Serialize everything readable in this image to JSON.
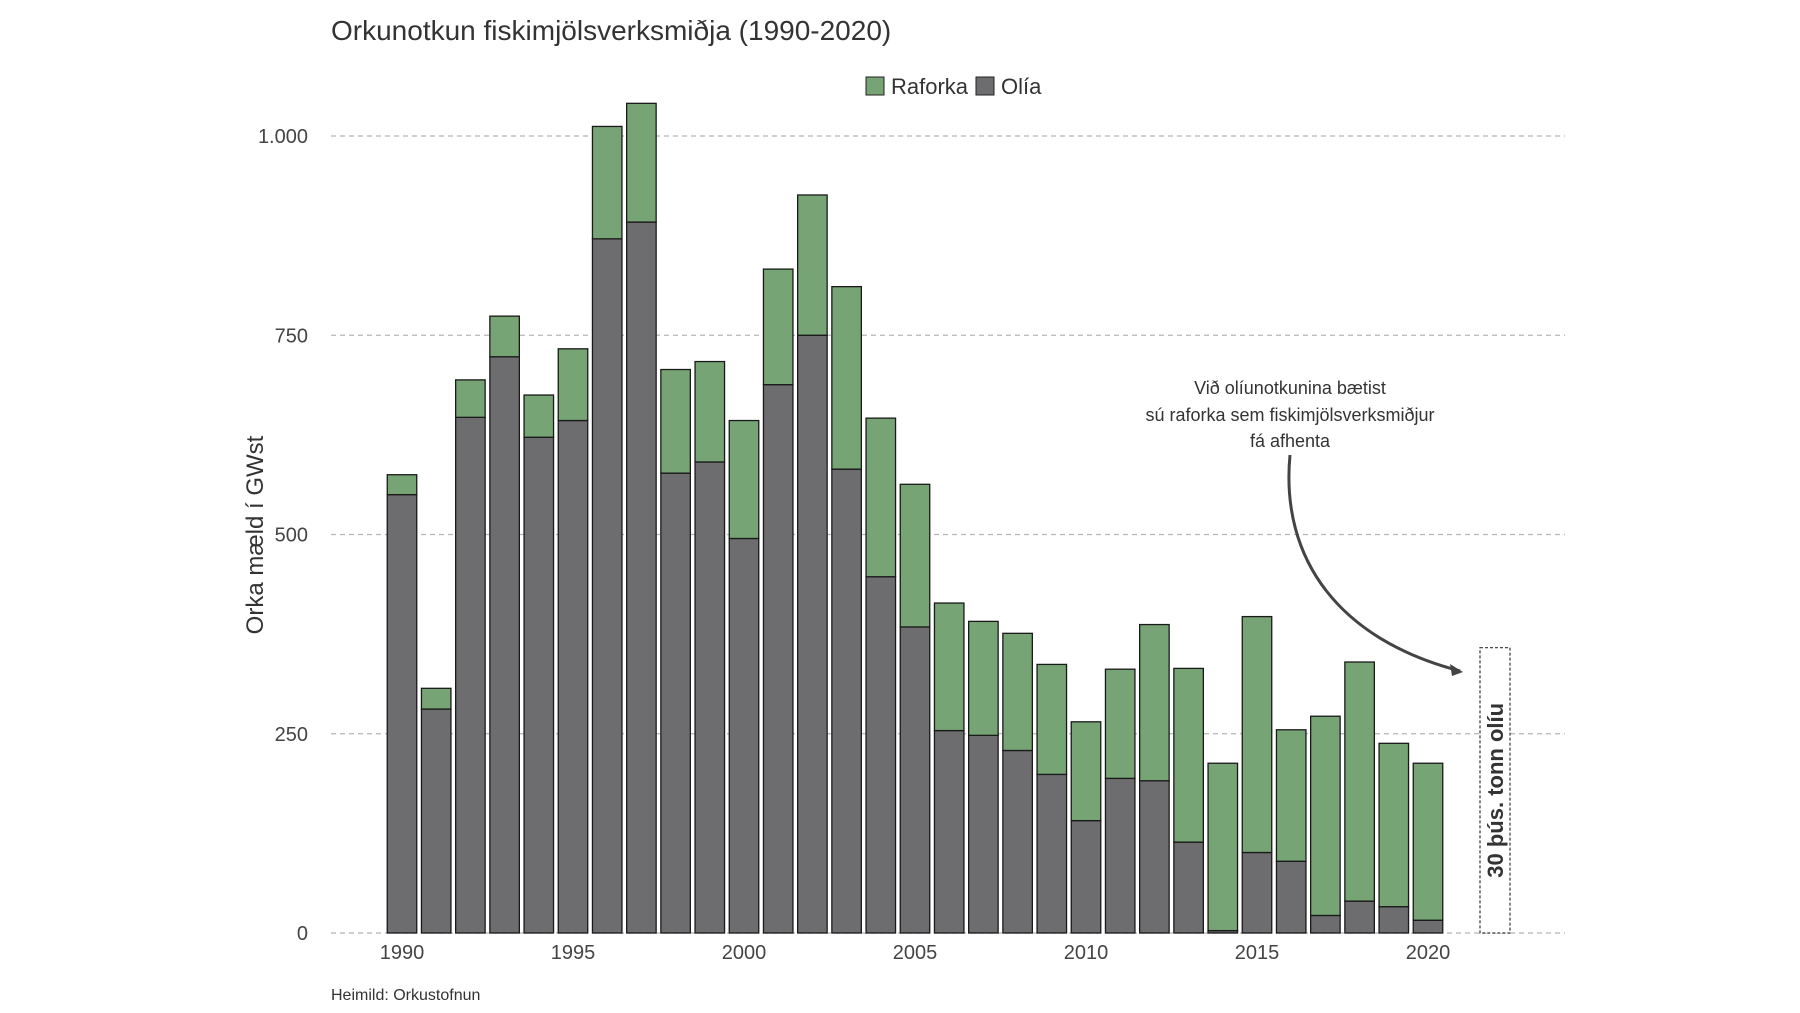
{
  "chart_data": {
    "type": "bar",
    "stacked": true,
    "title": "Orkunotkun fiskimjölsverksmiðja (1990-2020)",
    "ylabel": "Orka mæld í GWst",
    "xlabel": "",
    "ylim": [
      0,
      1000
    ],
    "yticks": [
      0,
      250,
      500,
      750,
      1000
    ],
    "ytick_labels": [
      "0",
      "250",
      "500",
      "750",
      "1.000"
    ],
    "xtick_labels": [
      "1990",
      "1995",
      "2000",
      "2005",
      "2010",
      "2015",
      "2020"
    ],
    "grid": true,
    "legend_position": "top-center",
    "categories": [
      1990,
      1991,
      1992,
      1993,
      1994,
      1995,
      1996,
      1997,
      1998,
      1999,
      2000,
      2001,
      2002,
      2003,
      2004,
      2005,
      2006,
      2007,
      2008,
      2009,
      2010,
      2011,
      2012,
      2013,
      2014,
      2015,
      2016,
      2017,
      2018,
      2019,
      2020
    ],
    "series": [
      {
        "name": "Olía",
        "color": "#6d6d6f",
        "values": [
          550,
          281,
          647,
          723,
          622,
          643,
          871,
          892,
          577,
          591,
          495,
          688,
          750,
          582,
          447,
          384,
          254,
          248,
          229,
          199,
          141,
          194,
          191,
          114,
          3,
          101,
          90,
          22,
          40,
          33,
          16
        ]
      },
      {
        "name": "Raforka",
        "color": "#76a474",
        "values": [
          25,
          26,
          47,
          51,
          53,
          90,
          141,
          149,
          130,
          126,
          148,
          145,
          176,
          229,
          199,
          179,
          160,
          143,
          147,
          138,
          124,
          137,
          196,
          218,
          210,
          296,
          165,
          250,
          300,
          205,
          197
        ]
      }
    ],
    "legend": [
      "Raforka",
      "Olía"
    ],
    "annotation": {
      "lines": [
        "Við olíunotkunina bætist",
        "sú raforka sem fiskimjölsverksmiðjur",
        "fá afhenta"
      ]
    },
    "reference_box": {
      "label": "30 þús. tonn olíu",
      "value": 358
    },
    "source": "Heimild: Orkustofnun"
  }
}
